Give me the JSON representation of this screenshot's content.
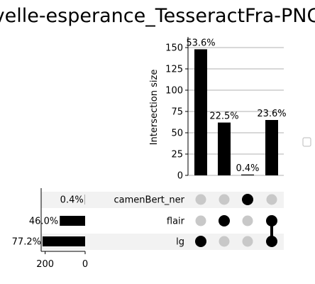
{
  "chart_data": {
    "type": "upset",
    "title": "velle-esperance_TesseractFra-PNG",
    "ylabel": "Intersection size",
    "ylim": [
      0,
      160
    ],
    "yticks": [
      0,
      25,
      50,
      75,
      100,
      125,
      150
    ],
    "sets": [
      "camenBert_ner",
      "flair",
      "lg"
    ],
    "set_size_percent_labels": [
      "0.4%",
      "46.0%",
      "77.2%"
    ],
    "set_sizes": [
      1,
      127,
      213
    ],
    "set_size_ticks": [
      200,
      0
    ],
    "intersections": [
      {
        "members": [
          "lg"
        ],
        "value": 148,
        "label": "53.6%"
      },
      {
        "members": [
          "flair"
        ],
        "value": 62,
        "label": "22.5%"
      },
      {
        "members": [
          "camenBert_ner"
        ],
        "value": 1,
        "label": "0.4%"
      },
      {
        "members": [
          "flair",
          "lg"
        ],
        "value": 65,
        "label": "23.6%"
      }
    ],
    "colors": {
      "bar": "#000000",
      "active_dot": "#000000",
      "inactive_dot": "#c8c8c8",
      "grid": "#b0b0b0",
      "stripe": "#f2f2f2"
    }
  }
}
